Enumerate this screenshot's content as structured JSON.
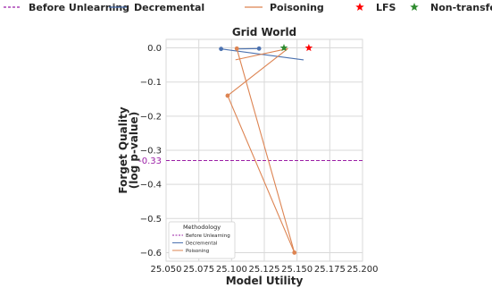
{
  "chart_data": {
    "type": "line",
    "title": "Grid World",
    "xlabel": "Model Utility",
    "ylabel": "Forget Quality\n(log p-value)",
    "xlim": [
      25.05,
      25.2
    ],
    "ylim": [
      -0.625,
      0.025
    ],
    "xticks": [
      "25.050",
      "25.075",
      "25.100",
      "25.125",
      "25.150",
      "25.175",
      "25.200"
    ],
    "xtick_values": [
      25.05,
      25.075,
      25.1,
      25.125,
      25.15,
      25.175,
      25.2
    ],
    "yticks": [
      "0.0",
      "−0.1",
      "−0.2",
      "−0.3",
      "−0.4",
      "−0.5",
      "−0.6"
    ],
    "ytick_values": [
      0.0,
      -0.1,
      -0.2,
      -0.3,
      -0.4,
      -0.5,
      -0.6
    ],
    "grid": true,
    "reference_line": {
      "name": "Before Unlearning",
      "y": -0.33,
      "label": "-0.33",
      "color": "#9b1fa6"
    },
    "series": [
      {
        "name": "Decremental",
        "color": "#4c72b0",
        "segments": [
          [
            {
              "x": 25.092,
              "y": -0.003
            },
            {
              "x": 25.155,
              "y": -0.035
            }
          ],
          [
            {
              "x": 25.105,
              "y": -0.003
            },
            {
              "x": 25.121,
              "y": -0.002
            }
          ]
        ],
        "markers": [
          {
            "x": 25.092,
            "y": -0.003
          },
          {
            "x": 25.121,
            "y": -0.002
          }
        ]
      },
      {
        "name": "Poisoning",
        "color": "#dd8452",
        "segments": [
          [
            {
              "x": 25.104,
              "y": -0.002
            },
            {
              "x": 25.148,
              "y": -0.6
            }
          ],
          [
            {
              "x": 25.143,
              "y": -0.002
            },
            {
              "x": 25.097,
              "y": -0.14
            }
          ],
          [
            {
              "x": 25.097,
              "y": -0.14
            },
            {
              "x": 25.148,
              "y": -0.6
            }
          ],
          [
            {
              "x": 25.103,
              "y": -0.035
            },
            {
              "x": 25.143,
              "y": -0.002
            }
          ]
        ],
        "markers": [
          {
            "x": 25.104,
            "y": -0.002
          },
          {
            "x": 25.097,
            "y": -0.14
          },
          {
            "x": 25.148,
            "y": -0.6
          }
        ]
      }
    ],
    "stars": [
      {
        "name": "LFS",
        "x": 25.159,
        "y": 0.0,
        "color": "#ff0000"
      },
      {
        "name": "Non-transfer LFS",
        "x": 25.14,
        "y": 0.0,
        "color": "#2e8b2e"
      }
    ],
    "legend_top": [
      {
        "label": "Before Unlearning",
        "kind": "dashed",
        "color": "#9b1fa6"
      },
      {
        "label": "Decremental",
        "kind": "line",
        "color": "#4c72b0"
      },
      {
        "label": "Poisoning",
        "kind": "line",
        "color": "#dd8452"
      },
      {
        "label": "LFS",
        "kind": "star",
        "color": "#ff0000"
      },
      {
        "label": "Non-transfer LFS",
        "kind": "star",
        "color": "#2e8b2e"
      }
    ],
    "legend_inner": {
      "title": "Methodology",
      "placement": "lower-left",
      "entries": [
        {
          "label": "Before Unlearning",
          "kind": "dashed",
          "color": "#9b1fa6"
        },
        {
          "label": "Decremental",
          "kind": "line",
          "color": "#4c72b0"
        },
        {
          "label": "Poisoning",
          "kind": "line",
          "color": "#dd8452"
        }
      ]
    }
  }
}
